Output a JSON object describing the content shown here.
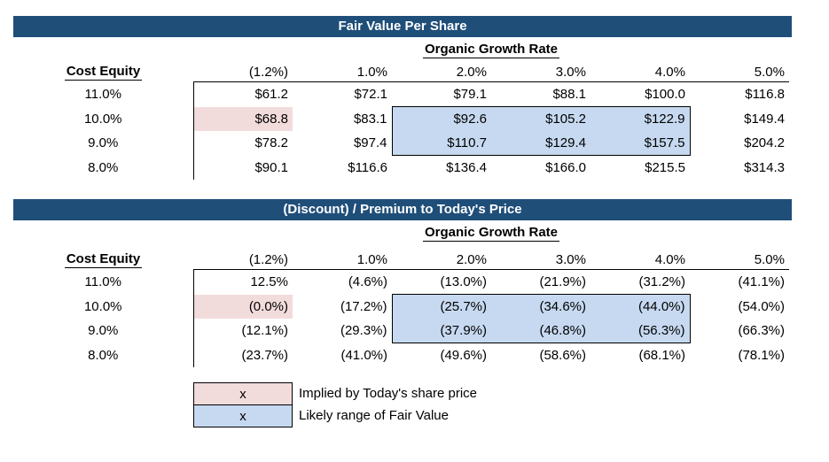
{
  "colors": {
    "header_bg": "#1F4E79",
    "highlight_pink": "#F2DCDB",
    "highlight_blue": "#C6D9F0",
    "border": "#000000"
  },
  "tables": [
    {
      "title": "Fair Value Per Share",
      "axis_label": "Organic Growth Rate",
      "corner_label": "Cost Equity",
      "columns": [
        "(1.2%)",
        "1.0%",
        "2.0%",
        "3.0%",
        "4.0%",
        "5.0%"
      ],
      "rows": [
        {
          "label": "11.0%",
          "cells": [
            {
              "v": "$61.2"
            },
            {
              "v": "$72.1"
            },
            {
              "v": "$79.1"
            },
            {
              "v": "$88.1"
            },
            {
              "v": "$100.0"
            },
            {
              "v": "$116.8"
            }
          ]
        },
        {
          "label": "10.0%",
          "cells": [
            {
              "v": "$68.8",
              "h": "pink"
            },
            {
              "v": "$83.1"
            },
            {
              "v": "$92.6",
              "h": "blue"
            },
            {
              "v": "$105.2",
              "h": "blue"
            },
            {
              "v": "$122.9",
              "h": "blue"
            },
            {
              "v": "$149.4"
            }
          ]
        },
        {
          "label": "9.0%",
          "cells": [
            {
              "v": "$78.2"
            },
            {
              "v": "$97.4"
            },
            {
              "v": "$110.7",
              "h": "blue"
            },
            {
              "v": "$129.4",
              "h": "blue"
            },
            {
              "v": "$157.5",
              "h": "blue"
            },
            {
              "v": "$204.2"
            }
          ]
        },
        {
          "label": "8.0%",
          "cells": [
            {
              "v": "$90.1"
            },
            {
              "v": "$116.6"
            },
            {
              "v": "$136.4"
            },
            {
              "v": "$166.0"
            },
            {
              "v": "$215.5"
            },
            {
              "v": "$314.3"
            }
          ]
        }
      ]
    },
    {
      "title": "(Discount) / Premium to Today's Price",
      "axis_label": "Organic Growth Rate",
      "corner_label": "Cost Equity",
      "columns": [
        "(1.2%)",
        "1.0%",
        "2.0%",
        "3.0%",
        "4.0%",
        "5.0%"
      ],
      "rows": [
        {
          "label": "11.0%",
          "cells": [
            {
              "v": "12.5%"
            },
            {
              "v": "(4.6%)"
            },
            {
              "v": "(13.0%)"
            },
            {
              "v": "(21.9%)"
            },
            {
              "v": "(31.2%)"
            },
            {
              "v": "(41.1%)"
            }
          ]
        },
        {
          "label": "10.0%",
          "cells": [
            {
              "v": "(0.0%)",
              "h": "pink"
            },
            {
              "v": "(17.2%)"
            },
            {
              "v": "(25.7%)",
              "h": "blue"
            },
            {
              "v": "(34.6%)",
              "h": "blue"
            },
            {
              "v": "(44.0%)",
              "h": "blue"
            },
            {
              "v": "(54.0%)"
            }
          ]
        },
        {
          "label": "9.0%",
          "cells": [
            {
              "v": "(12.1%)"
            },
            {
              "v": "(29.3%)"
            },
            {
              "v": "(37.9%)",
              "h": "blue"
            },
            {
              "v": "(46.8%)",
              "h": "blue"
            },
            {
              "v": "(56.3%)",
              "h": "blue"
            },
            {
              "v": "(66.3%)"
            }
          ]
        },
        {
          "label": "8.0%",
          "cells": [
            {
              "v": "(23.7%)"
            },
            {
              "v": "(41.0%)"
            },
            {
              "v": "(49.6%)"
            },
            {
              "v": "(58.6%)"
            },
            {
              "v": "(68.1%)"
            },
            {
              "v": "(78.1%)"
            }
          ]
        }
      ]
    }
  ],
  "legend": {
    "items": [
      {
        "marker": "x",
        "style": "pink",
        "label": "Implied by Today's share price"
      },
      {
        "marker": "x",
        "style": "blue",
        "label": "Likely range of Fair Value"
      }
    ]
  }
}
